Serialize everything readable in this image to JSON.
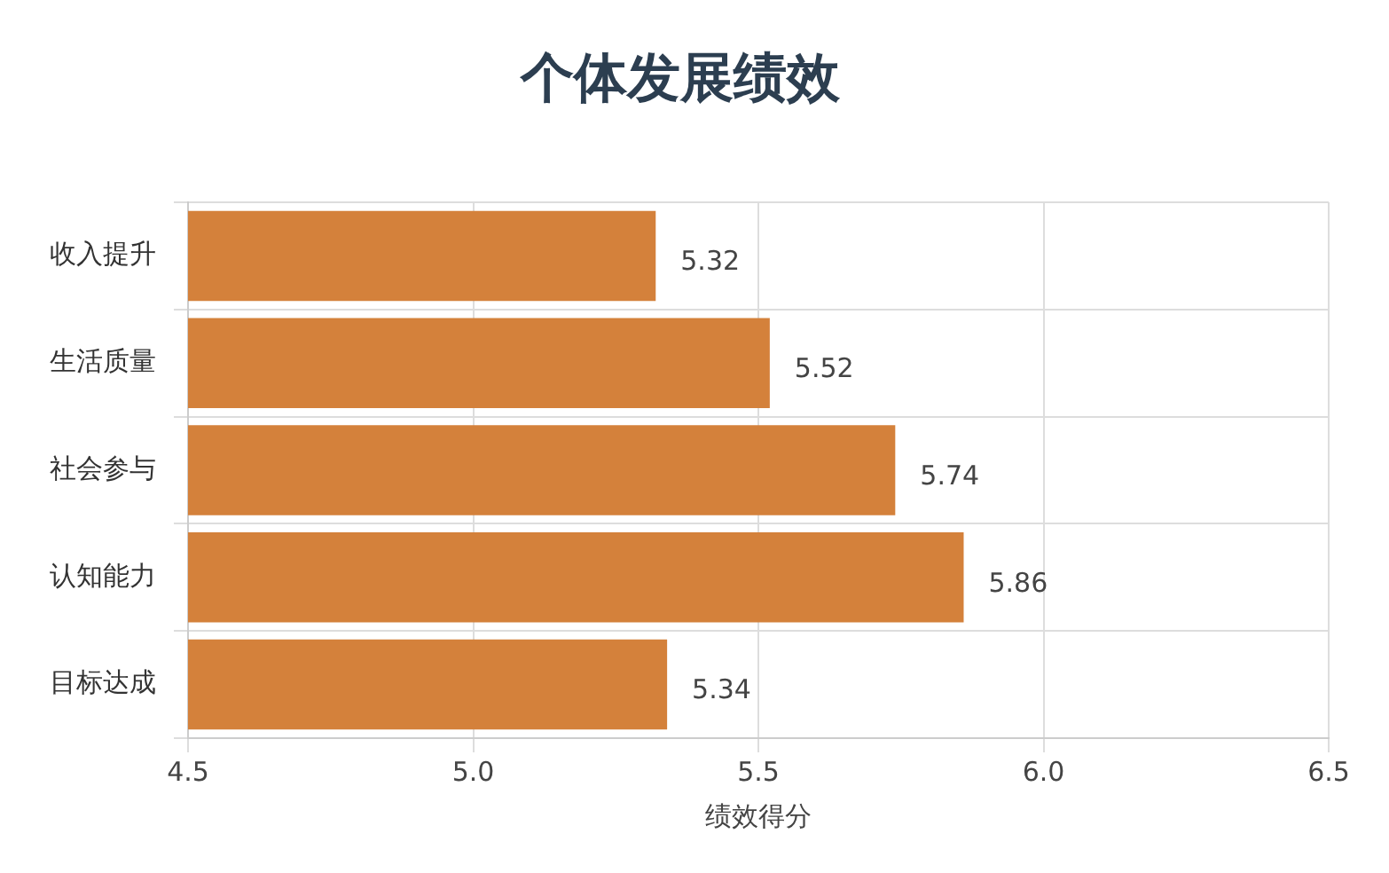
{
  "chart_data": {
    "type": "bar",
    "orientation": "horizontal",
    "title": "个体发展绩效",
    "xlabel": "绩效得分",
    "categories": [
      "收入提升",
      "生活质量",
      "社会参与",
      "认知能力",
      "目标达成"
    ],
    "values": [
      5.32,
      5.52,
      5.74,
      5.86,
      5.34
    ],
    "color": "#d4813b",
    "xlim": [
      4.5,
      6.5
    ],
    "xticks": [
      4.5,
      {
        "value": 5,
        "label": "5.0"
      },
      5.5,
      {
        "value": 6,
        "label": "6.0"
      },
      6.5
    ],
    "grid": true,
    "data_labels": true,
    "legend": false
  }
}
